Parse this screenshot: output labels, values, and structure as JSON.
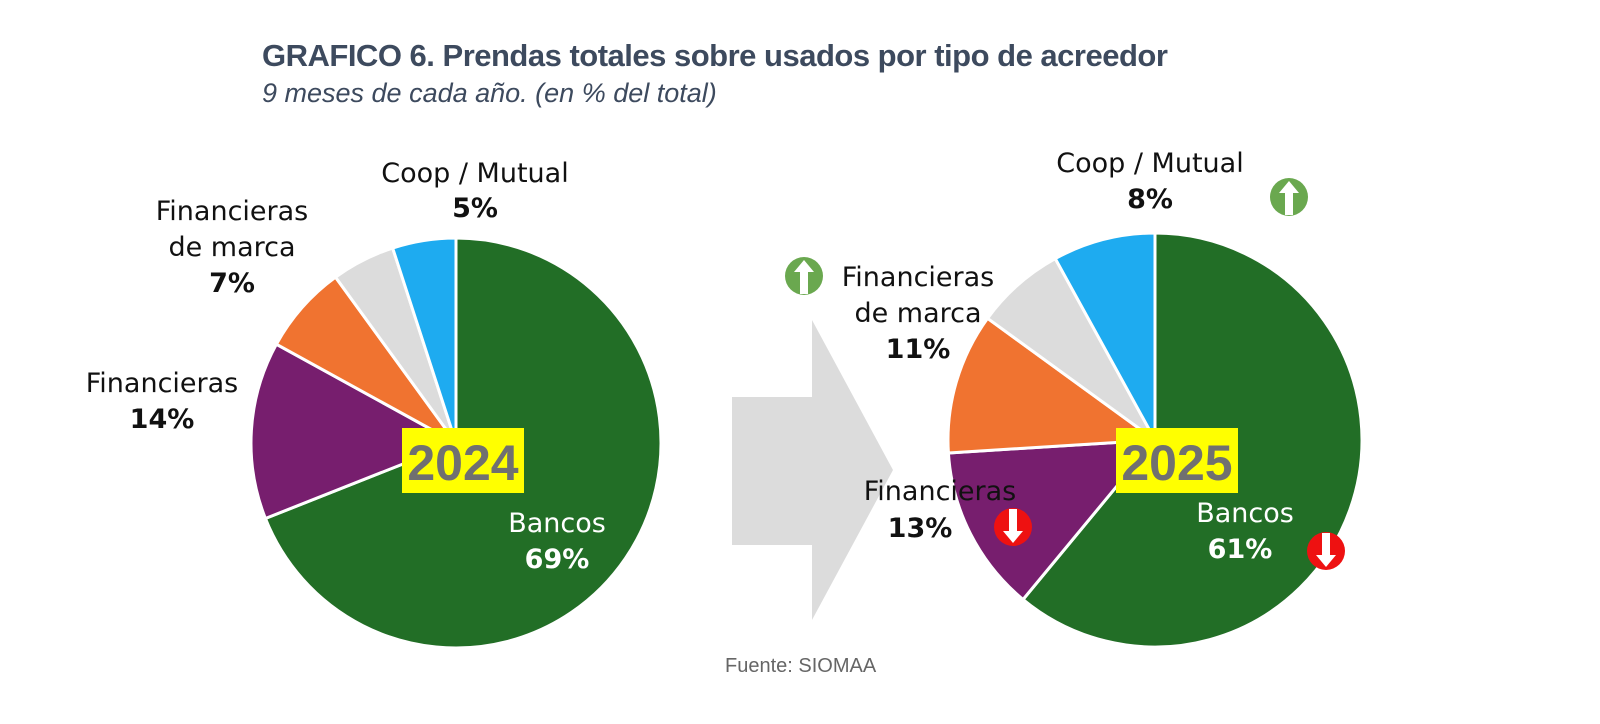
{
  "title": "GRAFICO 6. Prendas totales sobre usados por tipo de acreedor",
  "subtitle": "9 meses de cada año. (en % del total)",
  "source": "Fuente: SIOMAA",
  "colors": {
    "bancos": "#226e26",
    "financieras": "#771e6e",
    "financieras_marca": "#f07330",
    "otros": "#dcdcdc",
    "coop": "#1eabf0",
    "year_badge": "#ffff00",
    "up_icon": "#6aa84f",
    "down_icon": "#ee1111"
  },
  "chart_data": [
    {
      "type": "pie",
      "year_label": "2024",
      "title": "2024",
      "slices": [
        {
          "key": "bancos",
          "name": "Bancos",
          "value": 69,
          "label": "69%"
        },
        {
          "key": "financieras",
          "name": "Financieras",
          "value": 14,
          "label": "14%"
        },
        {
          "key": "financieras_marca",
          "name": "Financieras de marca",
          "value": 7,
          "label": "7%"
        },
        {
          "key": "otros",
          "name": "",
          "value": 5,
          "label": ""
        },
        {
          "key": "coop",
          "name": "Coop / Mutual",
          "value": 5,
          "label": "5%"
        }
      ],
      "labels": {
        "coop": {
          "line1": "Coop / Mutual",
          "pct": "5%"
        },
        "financieras_marca": {
          "line1": "Financieras",
          "line2": "de marca",
          "pct": "7%"
        },
        "financieras": {
          "line1": "Financieras",
          "pct": "14%"
        },
        "bancos": {
          "line1": "Bancos",
          "pct": "69%"
        }
      }
    },
    {
      "type": "pie",
      "year_label": "2025",
      "title": "2025",
      "slices": [
        {
          "key": "bancos",
          "name": "Bancos",
          "value": 61,
          "label": "61%",
          "trend": "down"
        },
        {
          "key": "financieras",
          "name": "Financieras",
          "value": 13,
          "label": "13%",
          "trend": "down"
        },
        {
          "key": "financieras_marca",
          "name": "Financieras de marca",
          "value": 11,
          "label": "11%",
          "trend": "up"
        },
        {
          "key": "otros",
          "name": "",
          "value": 7,
          "label": ""
        },
        {
          "key": "coop",
          "name": "Coop / Mutual",
          "value": 8,
          "label": "8%",
          "trend": "up"
        }
      ],
      "labels": {
        "coop": {
          "line1": "Coop / Mutual",
          "pct": "8%"
        },
        "financieras_marca": {
          "line1": "Financieras",
          "line2": "de marca",
          "pct": "11%"
        },
        "financieras": {
          "line1": "Financieras",
          "pct": "13%"
        },
        "bancos": {
          "line1": "Bancos",
          "pct": "61%"
        }
      }
    }
  ],
  "icons": {
    "up": "arrow-up-circle-icon",
    "down": "arrow-down-circle-icon",
    "transition": "right-arrow-icon"
  }
}
